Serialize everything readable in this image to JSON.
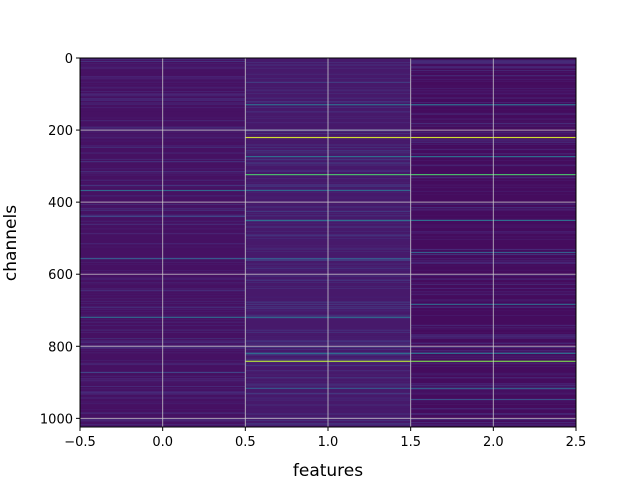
{
  "chart_data": {
    "type": "heatmap",
    "title": "",
    "xlabel": "features",
    "ylabel": "channels",
    "colormap": "viridis",
    "xlim": [
      -0.5,
      2.5
    ],
    "ylim": [
      1024,
      0
    ],
    "y_inverted": true,
    "grid": true,
    "columns": [
      0,
      1,
      2
    ],
    "rows": 1024,
    "xticks": [
      "−0.5",
      "0.0",
      "0.5",
      "1.0",
      "1.5",
      "2.0",
      "2.5"
    ],
    "xtick_values": [
      -0.5,
      0,
      0.5,
      1,
      1.5,
      2,
      2.5
    ],
    "yticks": [
      "0",
      "200",
      "400",
      "600",
      "800",
      "1000"
    ],
    "ytick_values": [
      0,
      200,
      400,
      600,
      800,
      1000
    ],
    "base_values": [
      0.06,
      0.09,
      0.04
    ],
    "highlights": [
      {
        "column": 0,
        "rows": [
          [
            366,
            0.42
          ],
          [
            438,
            0.25
          ],
          [
            555,
            0.35
          ],
          [
            718,
            0.42
          ],
          [
            871,
            0.25
          ]
        ]
      },
      {
        "column": 1,
        "rows": [
          [
            128,
            0.45
          ],
          [
            219,
            0.95
          ],
          [
            272,
            0.45
          ],
          [
            322,
            0.78
          ],
          [
            366,
            0.42
          ],
          [
            449,
            0.45
          ],
          [
            555,
            0.35
          ],
          [
            718,
            0.42
          ],
          [
            818,
            0.45
          ],
          [
            840,
            0.92
          ],
          [
            915,
            0.35
          ]
        ]
      },
      {
        "column": 2,
        "rows": [
          [
            128,
            0.45
          ],
          [
            219,
            0.95
          ],
          [
            272,
            0.45
          ],
          [
            322,
            0.78
          ],
          [
            449,
            0.45
          ],
          [
            538,
            0.38
          ],
          [
            682,
            0.42
          ],
          [
            818,
            0.45
          ],
          [
            840,
            0.85
          ],
          [
            915,
            0.38
          ],
          [
            946,
            0.3
          ]
        ]
      }
    ]
  }
}
